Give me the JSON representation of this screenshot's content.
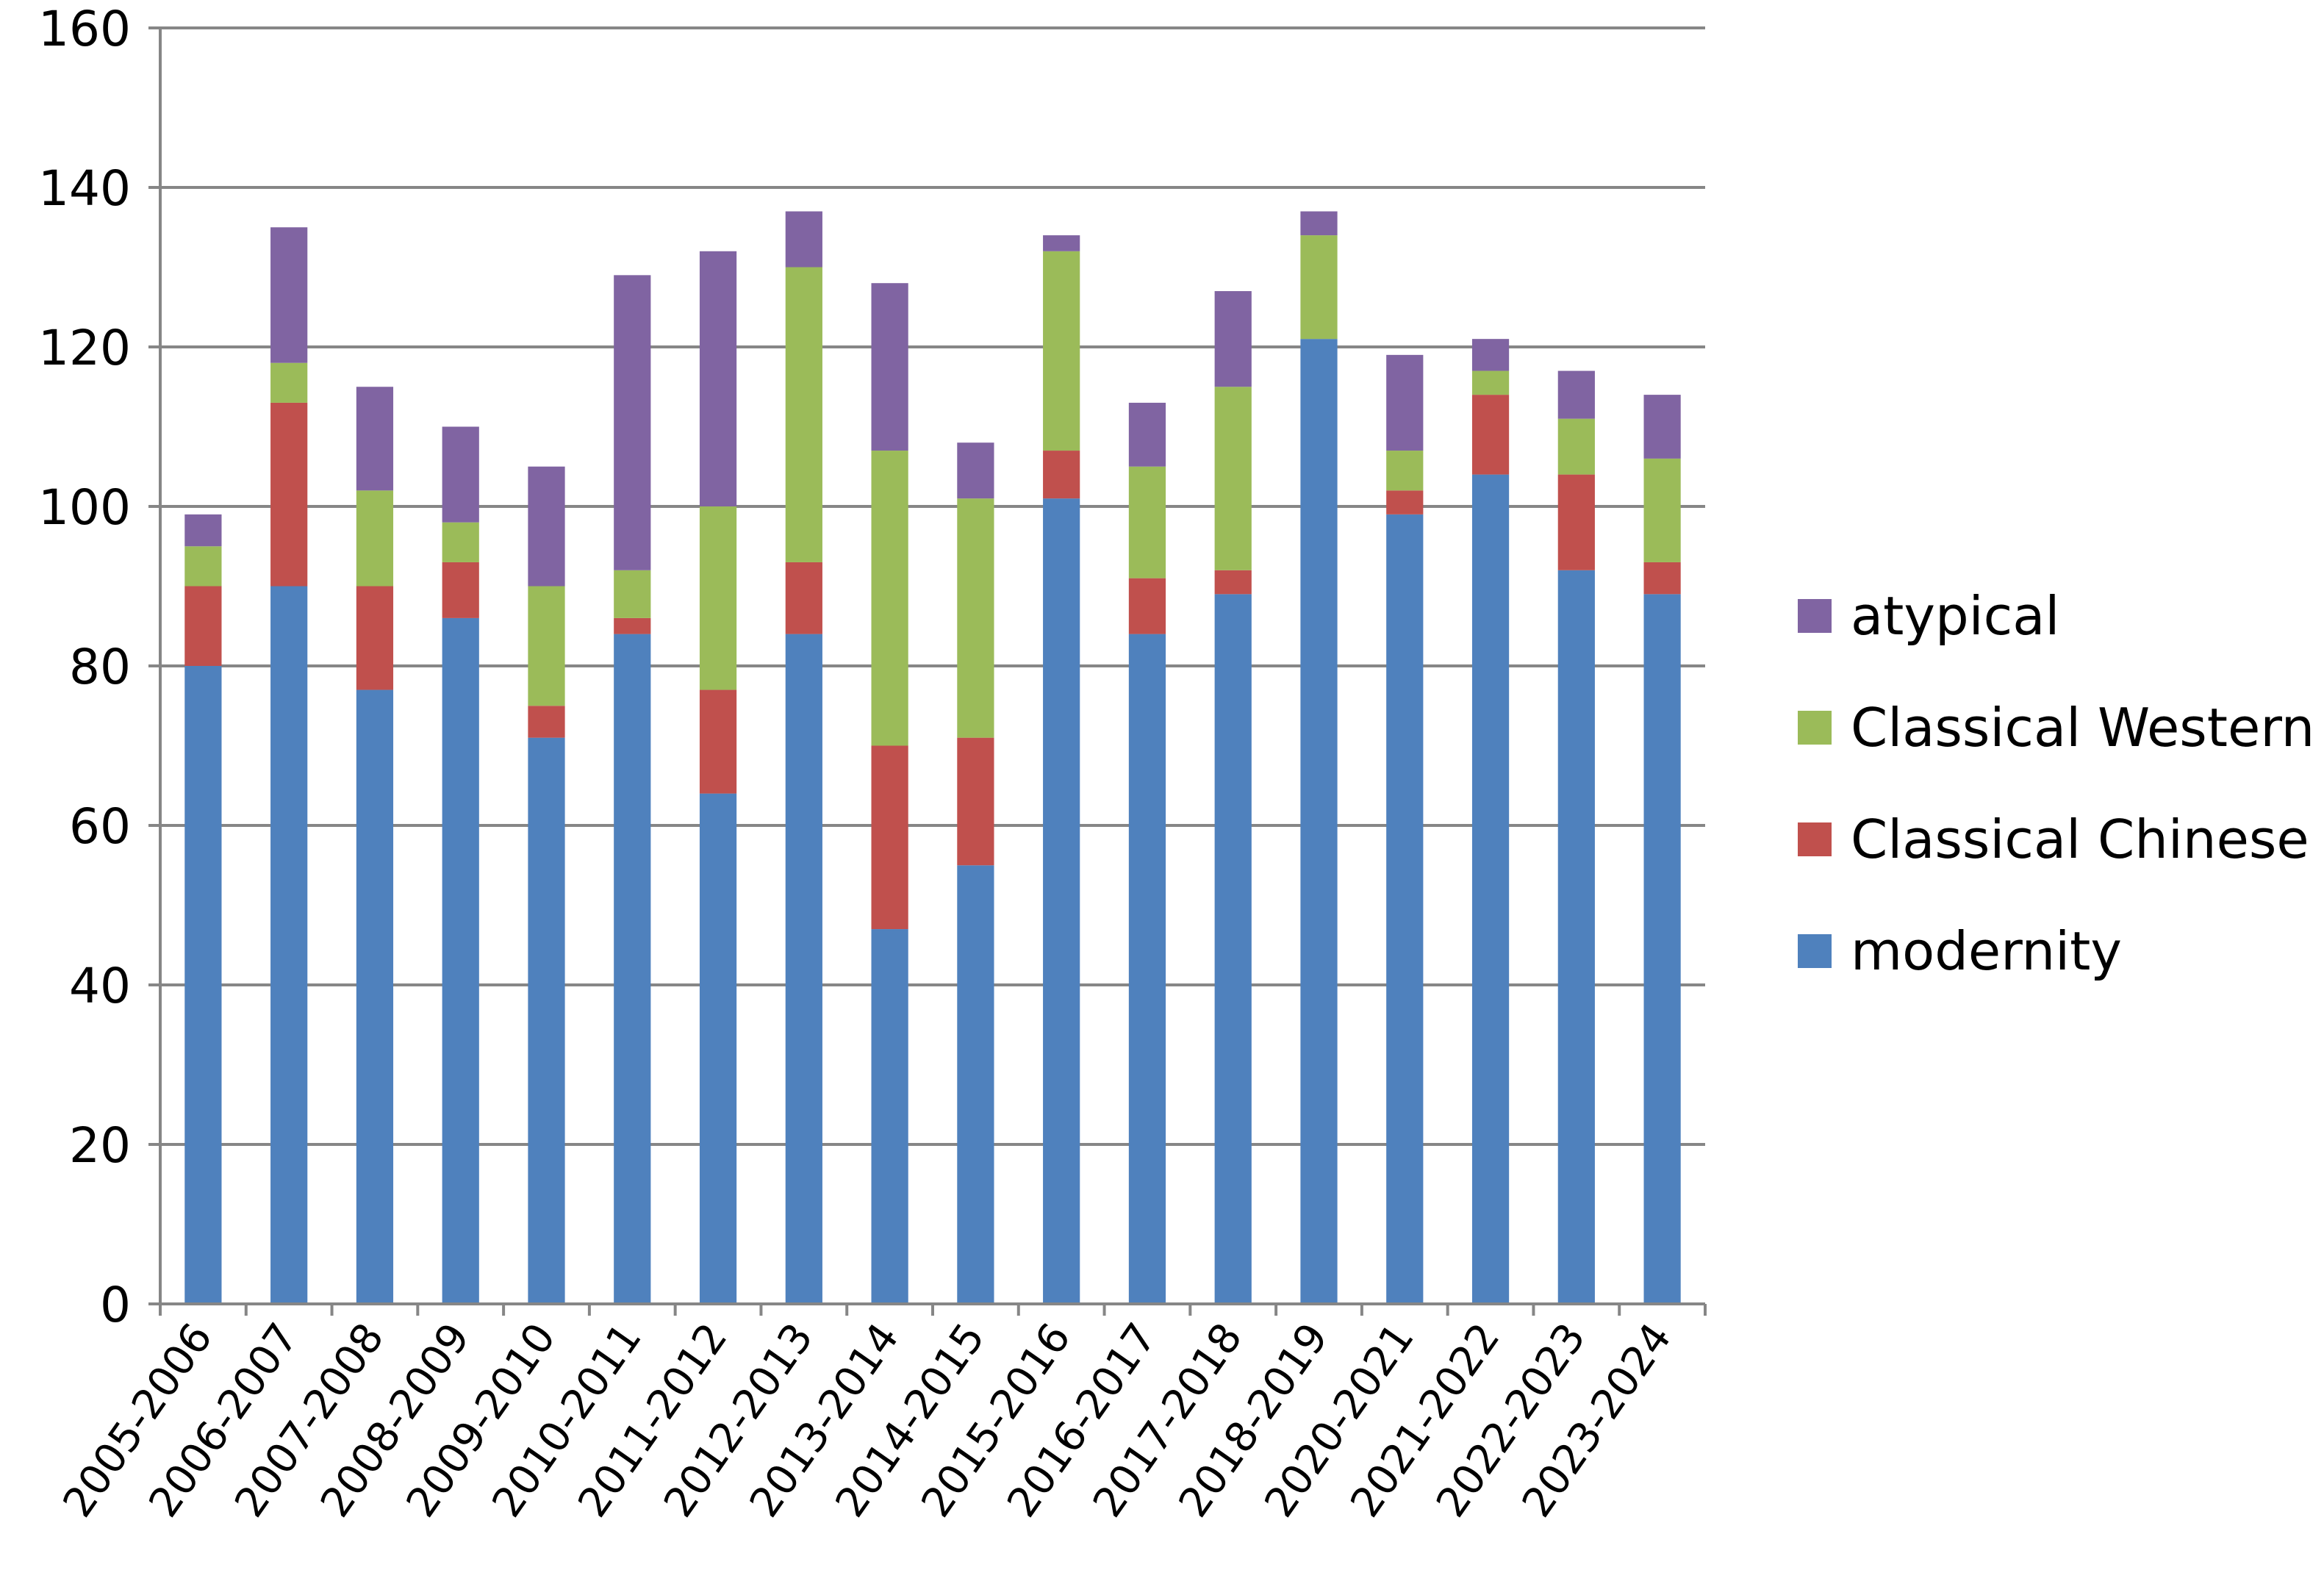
{
  "chart_data": {
    "type": "bar",
    "stacked": true,
    "title": "",
    "xlabel": "",
    "ylabel": "",
    "ylim": [
      0,
      160
    ],
    "yticks": [
      0,
      20,
      40,
      60,
      80,
      100,
      120,
      140,
      160
    ],
    "grid": true,
    "legend_position": "right",
    "categories": [
      "2005-2006",
      "2006-2007",
      "2007-2008",
      "2008-2009",
      "2009-2010",
      "2010-2011",
      "2011-2012",
      "2012-2013",
      "2013-2014",
      "2014-2015",
      "2015-2016",
      "2016-2017",
      "2017-2018",
      "2018-2019",
      "2020-2021",
      "2021-2022",
      "2022-2023",
      "2023-2024"
    ],
    "series": [
      {
        "name": "modernity",
        "color": "#4F81BD",
        "values": [
          80,
          90,
          77,
          86,
          71,
          84,
          64,
          84,
          47,
          55,
          101,
          84,
          89,
          121,
          99,
          104,
          92,
          89
        ]
      },
      {
        "name": "Classical Chinese",
        "color": "#C0504D",
        "values": [
          10,
          23,
          13,
          7,
          4,
          2,
          13,
          9,
          23,
          16,
          6,
          7,
          3,
          0,
          3,
          10,
          12,
          4
        ]
      },
      {
        "name": "Classical Western",
        "color": "#9BBB59",
        "values": [
          5,
          5,
          12,
          5,
          15,
          6,
          23,
          37,
          37,
          30,
          25,
          14,
          23,
          13,
          5,
          3,
          7,
          13
        ]
      },
      {
        "name": "atypical",
        "color": "#8064A2",
        "values": [
          4,
          17,
          13,
          12,
          15,
          37,
          32,
          7,
          21,
          7,
          2,
          8,
          12,
          3,
          12,
          4,
          6,
          8
        ]
      }
    ],
    "legend_order": [
      "atypical",
      "Classical Western",
      "Classical Chinese",
      "modernity"
    ],
    "axis_color": "#868686",
    "grid_color": "#868686"
  }
}
